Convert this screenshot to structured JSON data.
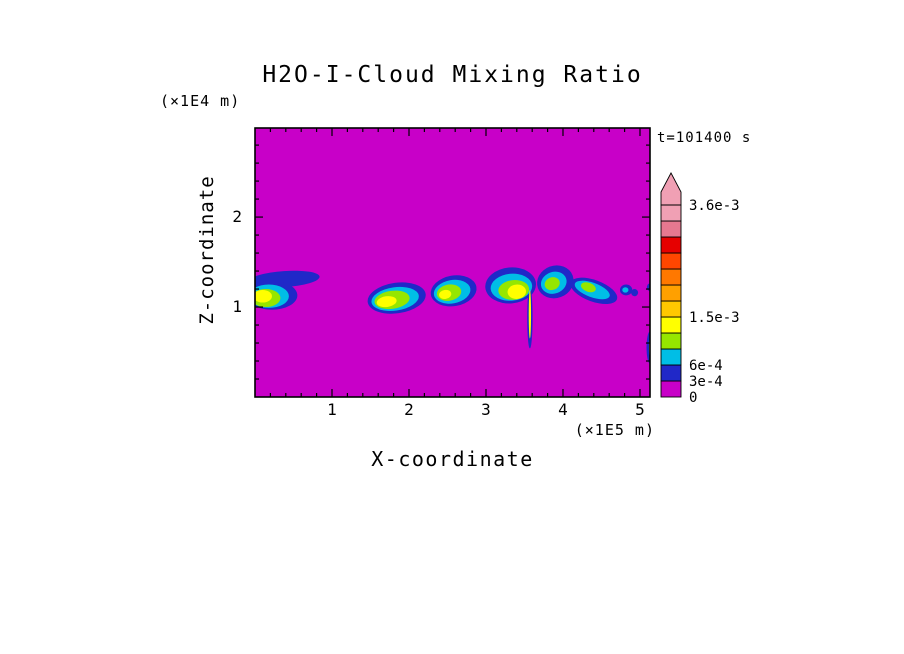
{
  "figure": {
    "background": "#FFFFFF",
    "text_color": "#000000"
  },
  "chart_data": {
    "type": "heatmap",
    "title": "H2O-I-Cloud Mixing Ratio",
    "xlabel": "X-coordinate",
    "ylabel": "Z-coordinate",
    "x_axis_unit": "(×1E5 m)",
    "y_axis_unit": "(×1E4 m)",
    "time_annotation": "t=101400 s",
    "xlim": [
      0,
      5.13
    ],
    "ylim": [
      0,
      2.99
    ],
    "x_ticks": [
      1,
      2,
      3,
      4,
      5
    ],
    "y_ticks": [
      1,
      2
    ],
    "minor_tick_step": 0.2,
    "grid": false,
    "field_background_color": "#C800C8",
    "frame_color": "#000000",
    "colorbar": {
      "position": "right",
      "segment_colors": [
        "#C800C8",
        "#2028C8",
        "#00BEE6",
        "#96E600",
        "#FFFF00",
        "#FFC800",
        "#FFA000",
        "#FF7800",
        "#FF4600",
        "#E60000",
        "#E67890",
        "#F0A0B4"
      ],
      "arrow_color": "#F0A0B4",
      "tick_labels": [
        {
          "text": "3.6e-3",
          "pos": 12
        },
        {
          "text": "1.5e-3",
          "pos": 5
        },
        {
          "text": "6e-4",
          "pos": 2
        },
        {
          "text": "3e-4",
          "pos": 1
        },
        {
          "text": "0",
          "pos": 0
        }
      ]
    },
    "clouds": [
      {
        "name": "cloud-1",
        "shapes": [
          {
            "x": 0.38,
            "z": 1.31,
            "rx": 0.46,
            "rz": 0.09,
            "rot": -4,
            "ci": 2
          },
          {
            "x": 0.22,
            "z": 1.13,
            "rx": 0.33,
            "rz": 0.16,
            "rot": 0,
            "ci": 2
          },
          {
            "x": 0.18,
            "z": 1.12,
            "rx": 0.26,
            "rz": 0.13,
            "rot": 0,
            "ci": 3
          },
          {
            "x": 0.14,
            "z": 1.1,
            "rx": 0.19,
            "rz": 0.1,
            "rot": 0,
            "ci": 4
          },
          {
            "x": 0.1,
            "z": 1.12,
            "rx": 0.12,
            "rz": 0.07,
            "rot": 0,
            "ci": 5
          }
        ]
      },
      {
        "name": "cloud-2",
        "shapes": [
          {
            "x": 1.84,
            "z": 1.1,
            "rx": 0.38,
            "rz": 0.17,
            "rot": -8,
            "ci": 2
          },
          {
            "x": 1.82,
            "z": 1.09,
            "rx": 0.31,
            "rz": 0.13,
            "rot": -8,
            "ci": 3
          },
          {
            "x": 1.78,
            "z": 1.08,
            "rx": 0.23,
            "rz": 0.1,
            "rot": -8,
            "ci": 4
          },
          {
            "x": 1.71,
            "z": 1.06,
            "rx": 0.13,
            "rz": 0.06,
            "rot": -8,
            "ci": 5
          }
        ]
      },
      {
        "name": "cloud-3",
        "shapes": [
          {
            "x": 2.58,
            "z": 1.18,
            "rx": 0.3,
            "rz": 0.17,
            "rot": -10,
            "ci": 2
          },
          {
            "x": 2.56,
            "z": 1.17,
            "rx": 0.24,
            "rz": 0.13,
            "rot": -10,
            "ci": 3
          },
          {
            "x": 2.52,
            "z": 1.16,
            "rx": 0.16,
            "rz": 0.09,
            "rot": -10,
            "ci": 4
          },
          {
            "x": 2.47,
            "z": 1.14,
            "rx": 0.08,
            "rz": 0.05,
            "rot": -10,
            "ci": 5
          }
        ]
      },
      {
        "name": "cloud-4",
        "shapes": [
          {
            "x": 3.57,
            "z": 0.88,
            "rx": 0.035,
            "rz": 0.34,
            "rot": 0,
            "ci": 2
          },
          {
            "x": 3.32,
            "z": 1.24,
            "rx": 0.33,
            "rz": 0.2,
            "rot": -5,
            "ci": 2
          },
          {
            "x": 3.33,
            "z": 1.22,
            "rx": 0.27,
            "rz": 0.15,
            "rot": -5,
            "ci": 3
          },
          {
            "x": 3.36,
            "z": 1.19,
            "rx": 0.2,
            "rz": 0.11,
            "rot": -5,
            "ci": 4
          },
          {
            "x": 3.4,
            "z": 1.17,
            "rx": 0.12,
            "rz": 0.08,
            "rot": -5,
            "ci": 5
          },
          {
            "x": 3.57,
            "z": 0.92,
            "rx": 0.015,
            "rz": 0.27,
            "rot": 0,
            "ci": 5
          }
        ]
      },
      {
        "name": "cloud-5",
        "shapes": [
          {
            "x": 3.9,
            "z": 1.28,
            "rx": 0.24,
            "rz": 0.18,
            "rot": -20,
            "ci": 2
          },
          {
            "x": 3.88,
            "z": 1.27,
            "rx": 0.17,
            "rz": 0.12,
            "rot": -20,
            "ci": 3
          },
          {
            "x": 3.86,
            "z": 1.26,
            "rx": 0.1,
            "rz": 0.07,
            "rot": -20,
            "ci": 4
          }
        ]
      },
      {
        "name": "cloud-6",
        "shapes": [
          {
            "x": 4.4,
            "z": 1.18,
            "rx": 0.32,
            "rz": 0.12,
            "rot": 20,
            "ci": 2
          },
          {
            "x": 4.38,
            "z": 1.19,
            "rx": 0.24,
            "rz": 0.08,
            "rot": 20,
            "ci": 3
          },
          {
            "x": 4.33,
            "z": 1.22,
            "rx": 0.1,
            "rz": 0.05,
            "rot": 20,
            "ci": 4
          }
        ]
      },
      {
        "name": "cloud-7",
        "shapes": [
          {
            "x": 4.82,
            "z": 1.19,
            "rx": 0.08,
            "rz": 0.06,
            "rot": 0,
            "ci": 2
          },
          {
            "x": 4.93,
            "z": 1.16,
            "rx": 0.045,
            "rz": 0.04,
            "rot": 0,
            "ci": 2
          },
          {
            "x": 4.81,
            "z": 1.19,
            "rx": 0.04,
            "rz": 0.03,
            "rot": 0,
            "ci": 3
          }
        ]
      },
      {
        "name": "cloud-8",
        "shapes": [
          {
            "x": 5.12,
            "z": 1.22,
            "rx": 0.03,
            "rz": 0.04,
            "rot": 0,
            "ci": 2
          },
          {
            "x": 5.13,
            "z": 0.55,
            "rx": 0.045,
            "rz": 0.18,
            "rot": 0,
            "ci": 2
          },
          {
            "x": 5.14,
            "z": 0.55,
            "rx": 0.022,
            "rz": 0.13,
            "rot": 0,
            "ci": 5
          }
        ]
      }
    ]
  }
}
